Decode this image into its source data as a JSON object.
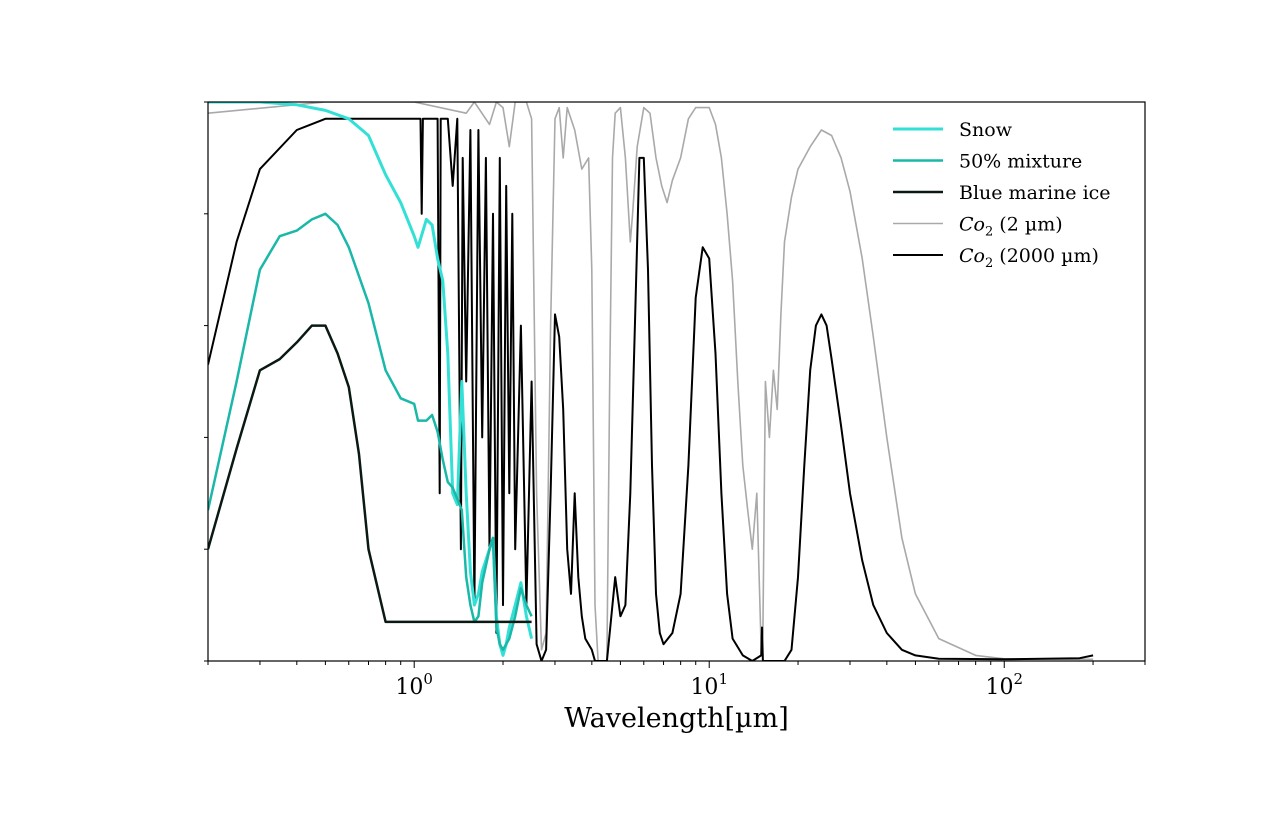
{
  "chart_data": {
    "type": "line",
    "title": "",
    "xlabel": "Wavelength[µm]",
    "ylabel": "",
    "x_scale": "log",
    "xlim": [
      0.2,
      300
    ],
    "ylim": [
      0,
      1
    ],
    "x_ticks": [
      {
        "value": 1,
        "base": "10",
        "exp": "0"
      },
      {
        "value": 10,
        "base": "10",
        "exp": "1"
      },
      {
        "value": 100,
        "base": "10",
        "exp": "2"
      }
    ],
    "grid": false,
    "legend_position": "top-right",
    "series": [
      {
        "name": "Snow",
        "legend_label": "Snow",
        "color": "#33e0d6",
        "width": 3,
        "opacity": 1,
        "points": [
          [
            0.2,
            1.0
          ],
          [
            0.3,
            1.0
          ],
          [
            0.4,
            0.995
          ],
          [
            0.5,
            0.985
          ],
          [
            0.6,
            0.97
          ],
          [
            0.7,
            0.94
          ],
          [
            0.8,
            0.87
          ],
          [
            0.9,
            0.82
          ],
          [
            1.0,
            0.76
          ],
          [
            1.03,
            0.74
          ],
          [
            1.1,
            0.79
          ],
          [
            1.15,
            0.78
          ],
          [
            1.2,
            0.72
          ],
          [
            1.25,
            0.68
          ],
          [
            1.3,
            0.55
          ],
          [
            1.35,
            0.3
          ],
          [
            1.4,
            0.28
          ],
          [
            1.45,
            0.5
          ],
          [
            1.5,
            0.3
          ],
          [
            1.55,
            0.16
          ],
          [
            1.6,
            0.1
          ],
          [
            1.65,
            0.12
          ],
          [
            1.7,
            0.16
          ],
          [
            1.8,
            0.2
          ],
          [
            1.85,
            0.22
          ],
          [
            1.9,
            0.08
          ],
          [
            1.95,
            0.03
          ],
          [
            2.0,
            0.01
          ],
          [
            2.05,
            0.03
          ],
          [
            2.1,
            0.06
          ],
          [
            2.2,
            0.1
          ],
          [
            2.3,
            0.14
          ],
          [
            2.4,
            0.08
          ],
          [
            2.5,
            0.04
          ]
        ]
      },
      {
        "name": "50% mixture",
        "legend_label": "50% mixture",
        "color": "#1ab8a8",
        "width": 2.5,
        "opacity": 1,
        "points": [
          [
            0.2,
            0.27
          ],
          [
            0.25,
            0.5
          ],
          [
            0.3,
            0.7
          ],
          [
            0.35,
            0.76
          ],
          [
            0.4,
            0.77
          ],
          [
            0.45,
            0.79
          ],
          [
            0.5,
            0.8
          ],
          [
            0.55,
            0.78
          ],
          [
            0.6,
            0.74
          ],
          [
            0.7,
            0.64
          ],
          [
            0.8,
            0.52
          ],
          [
            0.9,
            0.47
          ],
          [
            1.0,
            0.46
          ],
          [
            1.03,
            0.43
          ],
          [
            1.1,
            0.43
          ],
          [
            1.15,
            0.44
          ],
          [
            1.2,
            0.41
          ],
          [
            1.25,
            0.36
          ],
          [
            1.3,
            0.32
          ],
          [
            1.35,
            0.31
          ],
          [
            1.4,
            0.29
          ],
          [
            1.45,
            0.27
          ],
          [
            1.5,
            0.15
          ],
          [
            1.55,
            0.1
          ],
          [
            1.6,
            0.07
          ],
          [
            1.65,
            0.08
          ],
          [
            1.7,
            0.14
          ],
          [
            1.8,
            0.2
          ],
          [
            1.85,
            0.22
          ],
          [
            1.9,
            0.06
          ],
          [
            1.95,
            0.03
          ],
          [
            2.0,
            0.02
          ],
          [
            2.1,
            0.04
          ],
          [
            2.2,
            0.08
          ],
          [
            2.3,
            0.13
          ],
          [
            2.4,
            0.1
          ],
          [
            2.5,
            0.08
          ]
        ]
      },
      {
        "name": "Blue marine ice",
        "legend_label": "Blue marine ice",
        "color": "#0a1a12",
        "width": 2.5,
        "opacity": 1,
        "points": [
          [
            0.2,
            0.2
          ],
          [
            0.25,
            0.38
          ],
          [
            0.3,
            0.52
          ],
          [
            0.35,
            0.54
          ],
          [
            0.4,
            0.57
          ],
          [
            0.45,
            0.6
          ],
          [
            0.5,
            0.6
          ],
          [
            0.55,
            0.55
          ],
          [
            0.6,
            0.49
          ],
          [
            0.65,
            0.37
          ],
          [
            0.7,
            0.2
          ],
          [
            0.8,
            0.07
          ],
          [
            1.0,
            0.07
          ],
          [
            1.5,
            0.07
          ],
          [
            2.0,
            0.07
          ],
          [
            2.5,
            0.07
          ]
        ]
      },
      {
        "name": "Co2 (2 µm)",
        "legend_label": "Co",
        "legend_sub": "2",
        "legend_suffix": " (2 µm)",
        "color": "#9a9a9a",
        "width": 1.6,
        "opacity": 0.85,
        "points": [
          [
            0.2,
            0.98
          ],
          [
            0.5,
            1.0
          ],
          [
            1.0,
            1.0
          ],
          [
            1.5,
            0.98
          ],
          [
            1.6,
            1.0
          ],
          [
            1.8,
            0.96
          ],
          [
            1.9,
            1.0
          ],
          [
            2.0,
            0.99
          ],
          [
            2.1,
            0.92
          ],
          [
            2.2,
            1.0
          ],
          [
            2.4,
            1.0
          ],
          [
            2.5,
            0.97
          ],
          [
            2.6,
            0.3
          ],
          [
            2.7,
            0.02
          ],
          [
            2.8,
            0.05
          ],
          [
            2.9,
            0.6
          ],
          [
            3.0,
            0.97
          ],
          [
            3.1,
            0.99
          ],
          [
            3.2,
            0.9
          ],
          [
            3.3,
            0.99
          ],
          [
            3.5,
            0.95
          ],
          [
            3.7,
            0.88
          ],
          [
            3.9,
            0.9
          ],
          [
            4.0,
            0.7
          ],
          [
            4.1,
            0.1
          ],
          [
            4.2,
            0.0
          ],
          [
            4.5,
            0.0
          ],
          [
            4.6,
            0.5
          ],
          [
            4.7,
            0.9
          ],
          [
            4.8,
            0.98
          ],
          [
            5.0,
            0.99
          ],
          [
            5.2,
            0.9
          ],
          [
            5.4,
            0.75
          ],
          [
            5.5,
            0.8
          ],
          [
            5.7,
            0.92
          ],
          [
            6.0,
            0.99
          ],
          [
            6.3,
            0.98
          ],
          [
            6.6,
            0.9
          ],
          [
            6.9,
            0.85
          ],
          [
            7.2,
            0.82
          ],
          [
            7.5,
            0.86
          ],
          [
            8.0,
            0.9
          ],
          [
            8.5,
            0.97
          ],
          [
            9.0,
            0.99
          ],
          [
            10.0,
            0.99
          ],
          [
            10.5,
            0.96
          ],
          [
            11.0,
            0.9
          ],
          [
            11.5,
            0.8
          ],
          [
            12.0,
            0.68
          ],
          [
            12.5,
            0.5
          ],
          [
            13.0,
            0.35
          ],
          [
            13.5,
            0.27
          ],
          [
            14.0,
            0.2
          ],
          [
            14.5,
            0.3
          ],
          [
            15.0,
            0.02
          ],
          [
            15.2,
            0.05
          ],
          [
            15.5,
            0.5
          ],
          [
            16.0,
            0.4
          ],
          [
            16.5,
            0.52
          ],
          [
            17.0,
            0.45
          ],
          [
            17.5,
            0.62
          ],
          [
            18.0,
            0.75
          ],
          [
            19.0,
            0.83
          ],
          [
            20.0,
            0.88
          ],
          [
            22.0,
            0.92
          ],
          [
            24.0,
            0.95
          ],
          [
            26.0,
            0.94
          ],
          [
            28.0,
            0.9
          ],
          [
            30.0,
            0.84
          ],
          [
            33.0,
            0.72
          ],
          [
            36.0,
            0.58
          ],
          [
            40.0,
            0.4
          ],
          [
            45.0,
            0.22
          ],
          [
            50.0,
            0.12
          ],
          [
            60.0,
            0.04
          ],
          [
            80.0,
            0.01
          ],
          [
            100.0,
            0.004
          ],
          [
            200.0,
            0.003
          ]
        ]
      },
      {
        "name": "Co2 (2000 µm)",
        "legend_label": "Co",
        "legend_sub": "2",
        "legend_suffix": " (2000 µm)",
        "color": "#000000",
        "width": 2,
        "opacity": 1,
        "points": [
          [
            0.2,
            0.53
          ],
          [
            0.25,
            0.75
          ],
          [
            0.3,
            0.88
          ],
          [
            0.4,
            0.95
          ],
          [
            0.5,
            0.97
          ],
          [
            0.6,
            0.97
          ],
          [
            1.0,
            0.97
          ],
          [
            1.05,
            0.97
          ],
          [
            1.06,
            0.8
          ],
          [
            1.07,
            0.97
          ],
          [
            1.15,
            0.97
          ],
          [
            1.2,
            0.97
          ],
          [
            1.22,
            0.3
          ],
          [
            1.23,
            0.97
          ],
          [
            1.3,
            0.97
          ],
          [
            1.35,
            0.85
          ],
          [
            1.4,
            0.97
          ],
          [
            1.44,
            0.2
          ],
          [
            1.46,
            0.9
          ],
          [
            1.5,
            0.5
          ],
          [
            1.55,
            0.95
          ],
          [
            1.6,
            0.1
          ],
          [
            1.65,
            0.95
          ],
          [
            1.7,
            0.4
          ],
          [
            1.75,
            0.9
          ],
          [
            1.8,
            0.2
          ],
          [
            1.85,
            0.8
          ],
          [
            1.9,
            0.05
          ],
          [
            1.95,
            0.9
          ],
          [
            2.0,
            0.1
          ],
          [
            2.05,
            0.85
          ],
          [
            2.1,
            0.3
          ],
          [
            2.15,
            0.8
          ],
          [
            2.2,
            0.2
          ],
          [
            2.3,
            0.6
          ],
          [
            2.4,
            0.1
          ],
          [
            2.5,
            0.5
          ],
          [
            2.6,
            0.03
          ],
          [
            2.7,
            0.0
          ],
          [
            2.8,
            0.02
          ],
          [
            2.9,
            0.3
          ],
          [
            3.0,
            0.62
          ],
          [
            3.1,
            0.58
          ],
          [
            3.2,
            0.45
          ],
          [
            3.3,
            0.2
          ],
          [
            3.4,
            0.12
          ],
          [
            3.5,
            0.3
          ],
          [
            3.6,
            0.15
          ],
          [
            3.7,
            0.08
          ],
          [
            3.8,
            0.04
          ],
          [
            4.0,
            0.02
          ],
          [
            4.1,
            0.0
          ],
          [
            4.5,
            0.0
          ],
          [
            4.6,
            0.05
          ],
          [
            4.8,
            0.15
          ],
          [
            5.0,
            0.08
          ],
          [
            5.2,
            0.1
          ],
          [
            5.4,
            0.3
          ],
          [
            5.6,
            0.6
          ],
          [
            5.8,
            0.9
          ],
          [
            6.0,
            0.9
          ],
          [
            6.2,
            0.7
          ],
          [
            6.4,
            0.35
          ],
          [
            6.6,
            0.12
          ],
          [
            6.8,
            0.05
          ],
          [
            7.0,
            0.03
          ],
          [
            7.5,
            0.05
          ],
          [
            8.0,
            0.12
          ],
          [
            8.5,
            0.35
          ],
          [
            9.0,
            0.65
          ],
          [
            9.5,
            0.74
          ],
          [
            10.0,
            0.72
          ],
          [
            10.5,
            0.55
          ],
          [
            11.0,
            0.3
          ],
          [
            11.5,
            0.12
          ],
          [
            12.0,
            0.04
          ],
          [
            13.0,
            0.01
          ],
          [
            14.0,
            0.0
          ],
          [
            15.0,
            0.01
          ],
          [
            15.1,
            0.06
          ],
          [
            15.2,
            0.0
          ],
          [
            18.0,
            0.0
          ],
          [
            19.0,
            0.02
          ],
          [
            20.0,
            0.15
          ],
          [
            21.0,
            0.35
          ],
          [
            22.0,
            0.52
          ],
          [
            23.0,
            0.6
          ],
          [
            24.0,
            0.62
          ],
          [
            25.0,
            0.6
          ],
          [
            26.0,
            0.54
          ],
          [
            28.0,
            0.42
          ],
          [
            30.0,
            0.3
          ],
          [
            33.0,
            0.18
          ],
          [
            36.0,
            0.1
          ],
          [
            40.0,
            0.05
          ],
          [
            45.0,
            0.02
          ],
          [
            50.0,
            0.01
          ],
          [
            60.0,
            0.004
          ],
          [
            100.0,
            0.003
          ],
          [
            180.0,
            0.005
          ],
          [
            200.0,
            0.01
          ]
        ]
      }
    ]
  }
}
